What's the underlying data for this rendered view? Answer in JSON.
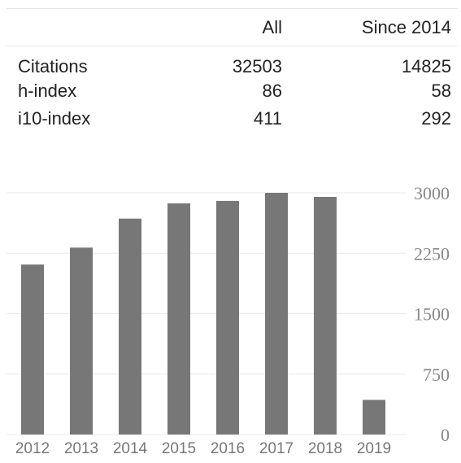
{
  "stats_table": {
    "header_all": "All",
    "header_since": "Since 2014",
    "rows": [
      {
        "label": "Citations",
        "all": "32503",
        "since": "14825"
      },
      {
        "label": "h-index",
        "all": "86",
        "since": "58"
      },
      {
        "label": "i10-index",
        "all": "411",
        "since": "292"
      }
    ]
  },
  "chart_data": {
    "type": "bar",
    "title": "",
    "xlabel": "",
    "ylabel": "",
    "categories": [
      "2012",
      "2013",
      "2014",
      "2015",
      "2016",
      "2017",
      "2018",
      "2019"
    ],
    "values": [
      2110,
      2320,
      2680,
      2870,
      2900,
      3000,
      2950,
      430
    ],
    "ylim": [
      0,
      3000
    ],
    "yticks": [
      "0",
      "750",
      "1500",
      "2250",
      "3000"
    ],
    "ytick_values": [
      0,
      750,
      1500,
      2250,
      3000
    ],
    "y_axis_side": "right",
    "grid": true,
    "bar_color": "#777777"
  }
}
